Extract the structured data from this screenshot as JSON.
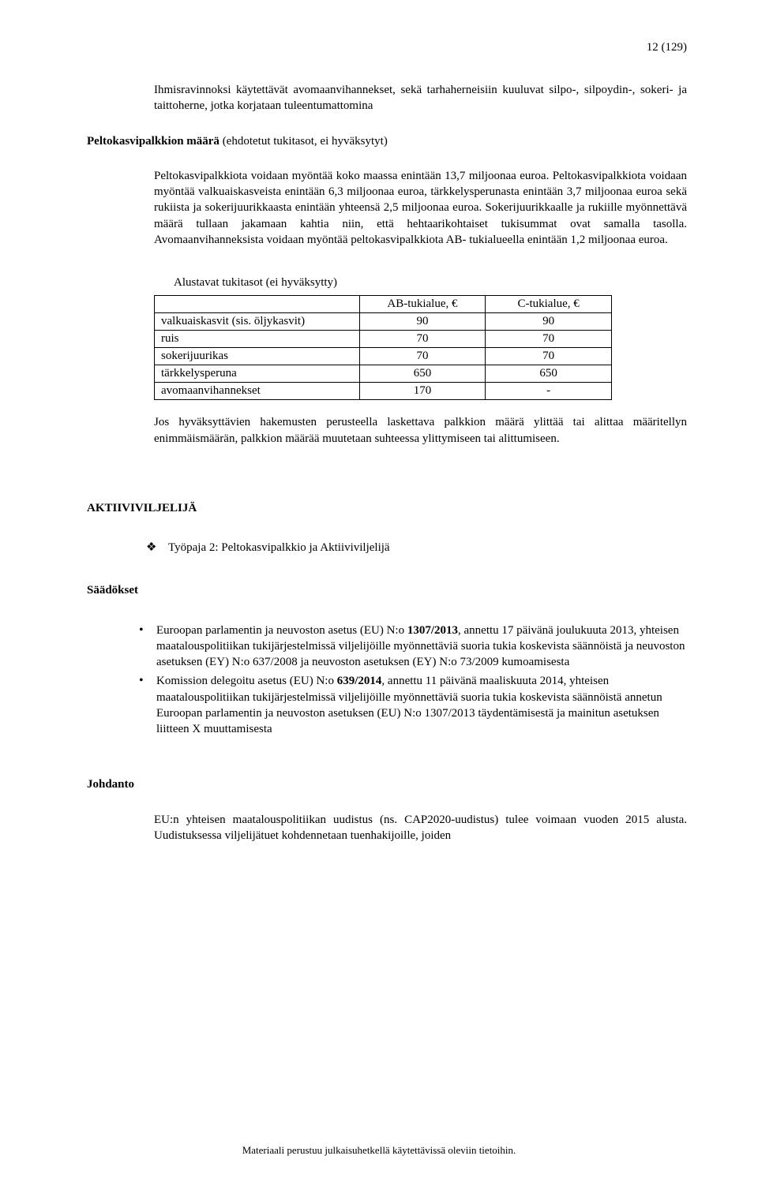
{
  "page_number": "12 (129)",
  "para1": "Ihmisravinnoksi käytettävät avomaanvihannekset, sekä tarhaherneisiin kuuluvat silpo-, silpoydin-, sokeri- ja taittoherne, jotka korjataan tuleentumattomina",
  "heading1_bold": "Peltokasvipalkkion määrä",
  "heading1_rest": " (ehdotetut tukitasot, ei hyväksytyt)",
  "para2": "Peltokasvipalkkiota voidaan myöntää koko maassa enintään 13,7 miljoonaa euroa. Peltokasvipalkkiota voidaan myöntää valkuaiskasveista enintään 6,3 miljoonaa euroa, tärkkelysperunasta enintään 3,7 miljoonaa euroa sekä rukiista ja sokerijuurikkaasta enintään yhteensä 2,5 miljoonaa euroa. Sokerijuurikkaalle ja rukiille myönnettävä määrä tullaan jakamaan kahtia niin, että hehtaarikohtaiset tukisummat ovat samalla tasolla. Avomaanvihanneksista voidaan myöntää peltokasvipalkkiota AB- tukialueella enintään 1,2 miljoonaa euroa.",
  "table": {
    "caption": "Alustavat tukitasot (ei hyväksytty)",
    "columns": [
      "",
      "AB-tukialue, €",
      "C-tukialue, €"
    ],
    "rows": [
      [
        "valkuaiskasvit (sis. öljykasvit)",
        "90",
        "90"
      ],
      [
        "ruis",
        "70",
        "70"
      ],
      [
        "sokerijuurikas",
        "70",
        "70"
      ],
      [
        "tärkkelysperuna",
        "650",
        "650"
      ],
      [
        "avomaanvihannekset",
        "170",
        "-"
      ]
    ],
    "col_widths": [
      "260px",
      "160px",
      "160px"
    ]
  },
  "para3": "Jos hyväksyttävien hakemusten perusteella laskettava palkkion määrä ylittää tai alittaa määritellyn enimmäismäärän, palkkion määrää muutetaan suhteessa ylittymiseen tai alittumiseen.",
  "heading2": "AKTIIVIVILJELIJÄ",
  "diamond_list": [
    "Työpaja 2: Peltokasvipalkkio ja Aktiiviviljelijä"
  ],
  "heading3": "Säädökset",
  "dot_list": [
    "Euroopan parlamentin ja neuvoston asetus (EU) N:o 1307/2013, annettu 17 päivänä joulukuuta 2013, yhteisen maatalouspolitiikan tukijärjestelmissä viljelijöille myönnettäviä suoria tukia koskevista säännöistä ja neuvoston asetuksen (EY) N:o 637/2008 ja neuvoston asetuksen (EY) N:o 73/2009 kumoamisesta",
    "Komission delegoitu asetus (EU) N:o 639/2014, annettu 11 päivänä maaliskuuta 2014, yhteisen maatalouspolitiikan tukijärjestelmissä viljelijöille myönnettäviä suoria tukia koskevista säännöistä annetun Euroopan parlamentin ja neuvoston asetuksen (EU) N:o 1307/2013 täydentämisestä ja mainitun asetuksen liitteen X muuttamisesta"
  ],
  "dot_list_bold_parts": [
    "1307/2013",
    "639/2014"
  ],
  "heading4": "Johdanto",
  "para4": "EU:n yhteisen maatalouspolitiikan uudistus (ns. CAP2020-uudistus) tulee voimaan vuoden 2015 alusta. Uudistuksessa viljelijätuet kohdennetaan tuenhakijoille, joiden",
  "footer": "Materiaali perustuu julkaisuhetkellä käytettävissä oleviin tietoihin."
}
